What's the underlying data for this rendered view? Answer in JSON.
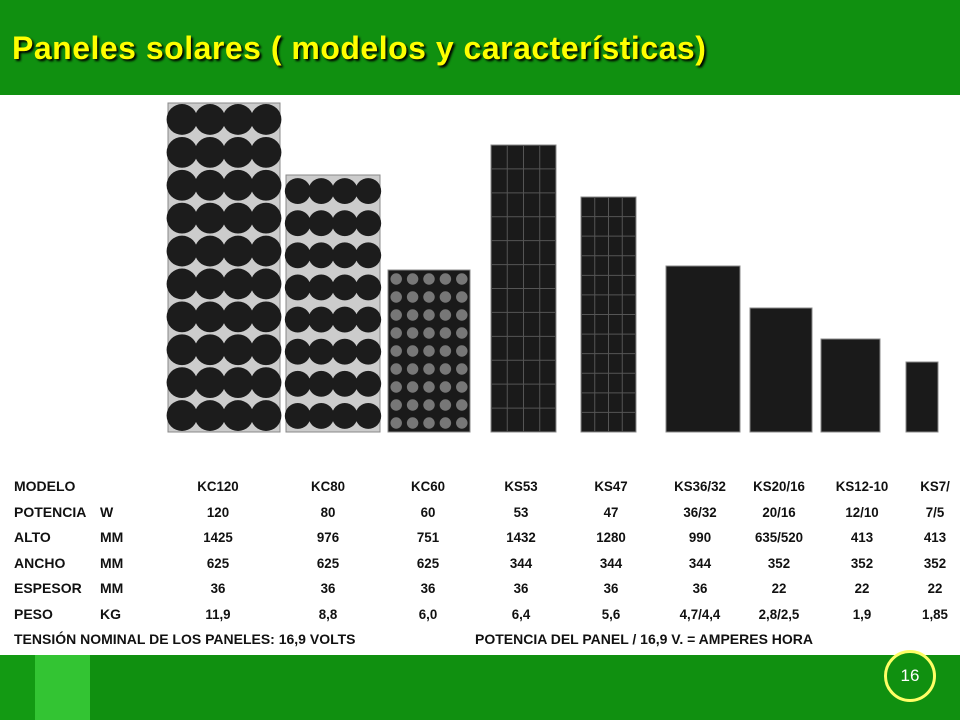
{
  "header": {
    "title": "Paneles solares ( modelos y características)"
  },
  "table": {
    "rows": [
      {
        "label": "MODELO",
        "values": [
          "KC120",
          "KC80",
          "KC60",
          "KS53",
          "KS47",
          "KS36/32",
          "KS20/16",
          "KS12-10",
          "KS7/"
        ]
      },
      {
        "label": "POTENCIA",
        "unit": "W",
        "values": [
          "120",
          "80",
          "60",
          "53",
          "47",
          "36/32",
          "20/16",
          "12/10",
          "7/5"
        ]
      },
      {
        "label": "ALTO",
        "unit": "MM",
        "values": [
          "1425",
          "976",
          "751",
          "1432",
          "1280",
          "990",
          "635/520",
          "413",
          "413"
        ]
      },
      {
        "label": "ANCHO",
        "unit": "MM",
        "values": [
          "625",
          "625",
          "625",
          "344",
          "344",
          "344",
          "352",
          "352",
          "352"
        ]
      },
      {
        "label": "ESPESOR",
        "unit": "MM",
        "values": [
          "36",
          "36",
          "36",
          "36",
          "36",
          "36",
          "22",
          "22",
          "22"
        ]
      },
      {
        "label": "PESO",
        "unit": "KG",
        "values": [
          "11,9",
          "8,8",
          "6,0",
          "6,4",
          "5,6",
          "4,7/4,4",
          "2,8/2,5",
          "1,9",
          "1,85"
        ]
      }
    ],
    "notes": [
      "TENSIÓN NOMINAL DE LOS PANELES: 16,9 VOLTS",
      "POTENCIA DEL PANEL / 16,9 V. = AMPERES HORA"
    ]
  },
  "page_number": "16"
}
